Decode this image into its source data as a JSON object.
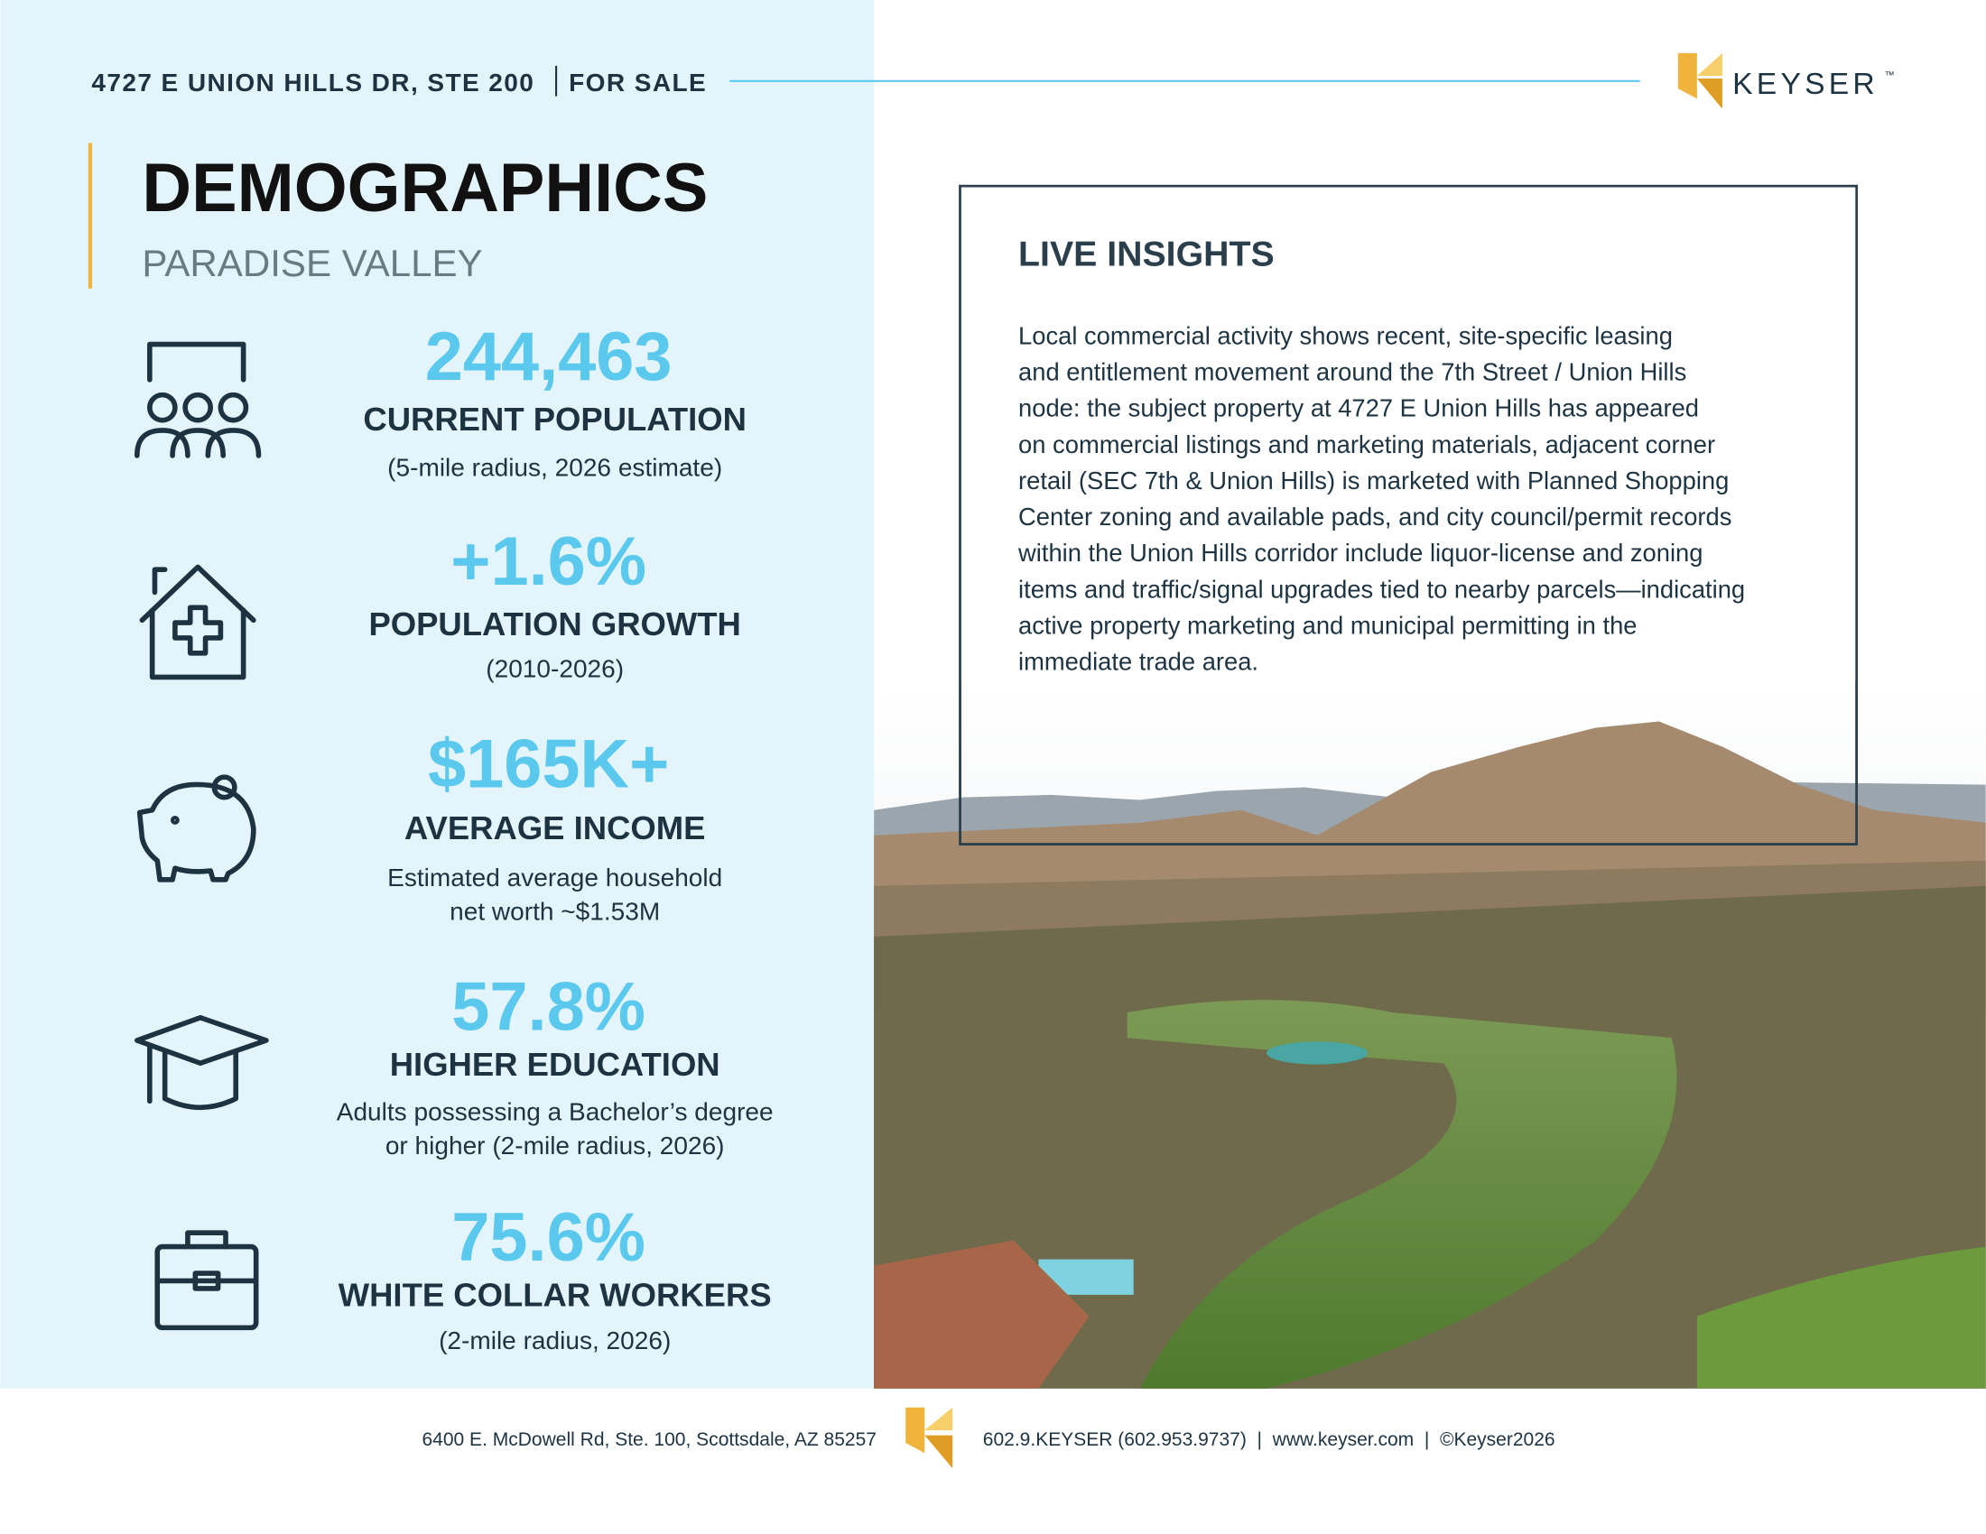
{
  "header": {
    "address": "4727 E UNION HILLS DR, STE 200",
    "status": "FOR SALE",
    "logo": "KEYSER",
    "trademark": "™"
  },
  "title": "DEMOGRAPHICS",
  "subtitle": "PARADISE VALLEY",
  "stats": [
    {
      "value": "244,463",
      "label": "CURRENT POPULATION",
      "note": [
        "(5-mile radius, 2026 estimate)"
      ]
    },
    {
      "value": "+1.6%",
      "label": "POPULATION GROWTH",
      "note": [
        "(2010-2026)"
      ]
    },
    {
      "value": "$165K+",
      "label": "AVERAGE INCOME",
      "note": [
        "Estimated average household",
        "net worth ~$1.53M"
      ]
    },
    {
      "value": "57.8%",
      "label": "HIGHER EDUCATION",
      "note": [
        "Adults possessing a Bachelor’s degree",
        "or higher (2-mile radius, 2026)"
      ]
    },
    {
      "value": "75.6%",
      "label": "WHITE COLLAR WORKERS",
      "note": [
        "(2-mile radius, 2026)"
      ]
    }
  ],
  "insights": {
    "title": "LIVE INSIGHTS",
    "lines": [
      "Local commercial activity shows recent, site-specific leasing",
      "and entitlement movement around the 7th Street / Union Hills",
      "node: the subject property at 4727 E Union Hills has appeared",
      "on commercial listings and marketing materials, adjacent corner",
      "retail (SEC 7th & Union Hills) is marketed with Planned Shopping",
      "Center zoning and available pads, and city council/permit records",
      "within the Union Hills corridor include liquor-license and zoning",
      "items and traffic/signal upgrades tied to nearby parcels—indicating",
      "active property marketing and municipal permitting in the",
      "immediate trade area."
    ]
  },
  "footer": {
    "address": "6400 E. McDowell Rd, Ste. 100, Scottsdale, AZ 85257",
    "contact": "602.9.KEYSER (602.953.9737)  |  www.keyser.com  |  ©Keyser2026"
  }
}
